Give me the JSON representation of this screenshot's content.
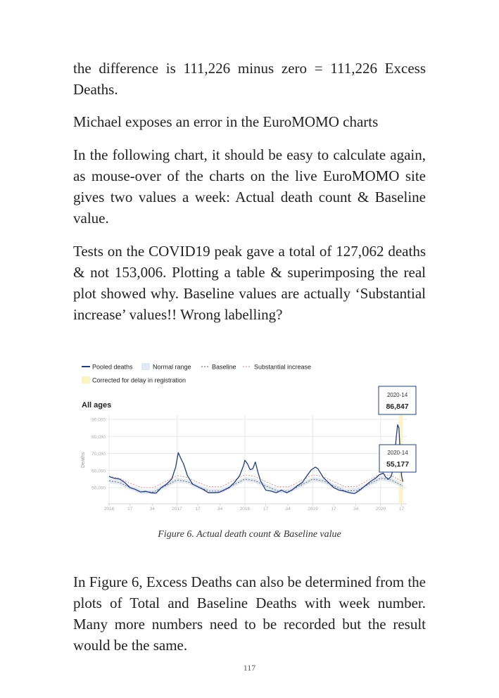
{
  "paragraphs": [
    "the difference is 111,226 minus zero = 111,226 Excess Deaths.",
    "Michael exposes an error in the EuroMOMO charts",
    "In the following chart, it should be easy to calculate again, as mouse-over of the charts on the live EuroMOMO site gives two values a week: Actual death count & Baseline value.",
    "Tests on the COVID19 peak gave a total of 127,062 deaths & not 153,006. Plotting a table & superimposing the real plot showed why. Baseline values are actually ‘Substantial increase’ values!! Wrong labelling?",
    "In Figure 6, Excess Deaths can also be determined from the plots of Total and Baseline Deaths with week number. Many more numbers need to be recorded but the result would be the same."
  ],
  "figure_caption": "Figure 6. Actual death count & Baseline value",
  "page_number": "117",
  "chart_data": {
    "type": "line",
    "title": "All ages",
    "ylabel": "Deaths",
    "xlabel": "",
    "ylim": [
      45000,
      91000
    ],
    "grid": true,
    "legend_placement": "top-left",
    "legend": [
      "Pooled deaths",
      "Normal range",
      "Baseline",
      "Substantial increase",
      "Corrected for delay in registration"
    ],
    "y_ticks": [
      "90,000",
      "80,000",
      "70,000",
      "60,000",
      "50,000"
    ],
    "y_tick_values": [
      90000,
      80000,
      70000,
      60000,
      50000
    ],
    "x_ticks": [
      {
        "label": "2016",
        "year": 2016,
        "week": 1
      },
      {
        "label": "17",
        "year": 2016,
        "week": 17
      },
      {
        "label": "34",
        "year": 2016,
        "week": 34
      },
      {
        "label": "2017",
        "year": 2017,
        "week": 1
      },
      {
        "label": "17",
        "year": 2017,
        "week": 17
      },
      {
        "label": "34",
        "year": 2017,
        "week": 34
      },
      {
        "label": "2018",
        "year": 2018,
        "week": 1
      },
      {
        "label": "17",
        "year": 2018,
        "week": 17
      },
      {
        "label": "34",
        "year": 2018,
        "week": 34
      },
      {
        "label": "2019",
        "year": 2019,
        "week": 1
      },
      {
        "label": "17",
        "year": 2019,
        "week": 17
      },
      {
        "label": "34",
        "year": 2019,
        "week": 34
      },
      {
        "label": "2020",
        "year": 2020,
        "week": 1
      },
      {
        "label": "17",
        "year": 2020,
        "week": 17
      }
    ],
    "colors": {
      "pooled": "#1f3d8a",
      "normal_range": "#e3e9f0",
      "baseline": "#555555",
      "substantial": "#e07a7a",
      "corrected": "#fbf3c0"
    },
    "corrected_weeks": {
      "from": "2020-15",
      "to": "2020-18"
    },
    "series": [
      {
        "name": "Pooled deaths",
        "points": [
          [
            "2016-01",
            56500
          ],
          [
            "2016-05",
            55500
          ],
          [
            "2016-09",
            55000
          ],
          [
            "2016-13",
            53000
          ],
          [
            "2016-17",
            50000
          ],
          [
            "2016-21",
            49000
          ],
          [
            "2016-25",
            47500
          ],
          [
            "2016-29",
            47800
          ],
          [
            "2016-33",
            47000
          ],
          [
            "2016-37",
            46800
          ],
          [
            "2016-41",
            50000
          ],
          [
            "2016-45",
            52000
          ],
          [
            "2016-49",
            55000
          ],
          [
            "2016-52",
            62000
          ],
          [
            "2017-02",
            70500
          ],
          [
            "2017-04",
            67000
          ],
          [
            "2017-06",
            64000
          ],
          [
            "2017-09",
            57000
          ],
          [
            "2017-13",
            52000
          ],
          [
            "2017-17",
            50500
          ],
          [
            "2017-21",
            49000
          ],
          [
            "2017-25",
            47000
          ],
          [
            "2017-29",
            47000
          ],
          [
            "2017-33",
            47200
          ],
          [
            "2017-37",
            48500
          ],
          [
            "2017-41",
            50000
          ],
          [
            "2017-45",
            53000
          ],
          [
            "2017-49",
            57000
          ],
          [
            "2017-52",
            63000
          ],
          [
            "2018-01",
            66000
          ],
          [
            "2018-03",
            64000
          ],
          [
            "2018-05",
            60500
          ],
          [
            "2018-07",
            61000
          ],
          [
            "2018-09",
            65000
          ],
          [
            "2018-11",
            59000
          ],
          [
            "2018-13",
            54000
          ],
          [
            "2018-17",
            48500
          ],
          [
            "2018-21",
            48000
          ],
          [
            "2018-25",
            47000
          ],
          [
            "2018-29",
            48500
          ],
          [
            "2018-33",
            47000
          ],
          [
            "2018-37",
            48500
          ],
          [
            "2018-41",
            51000
          ],
          [
            "2018-45",
            53000
          ],
          [
            "2018-49",
            57500
          ],
          [
            "2018-52",
            60500
          ],
          [
            "2019-03",
            62000
          ],
          [
            "2019-05",
            61000
          ],
          [
            "2019-09",
            56000
          ],
          [
            "2019-13",
            53000
          ],
          [
            "2019-17",
            50000
          ],
          [
            "2019-21",
            48500
          ],
          [
            "2019-25",
            48000
          ],
          [
            "2019-29",
            47000
          ],
          [
            "2019-33",
            46500
          ],
          [
            "2019-37",
            48500
          ],
          [
            "2019-41",
            51000
          ],
          [
            "2019-45",
            53500
          ],
          [
            "2019-49",
            55500
          ],
          [
            "2019-52",
            57500
          ],
          [
            "2020-03",
            58500
          ],
          [
            "2020-05",
            56000
          ],
          [
            "2020-07",
            55000
          ],
          [
            "2020-09",
            56500
          ],
          [
            "2020-11",
            62000
          ],
          [
            "2020-13",
            80000
          ],
          [
            "2020-14",
            86847
          ],
          [
            "2020-15",
            85000
          ],
          [
            "2020-16",
            70000
          ],
          [
            "2020-17",
            57000
          ],
          [
            "2020-18",
            53500
          ]
        ]
      },
      {
        "name": "Baseline",
        "points": [
          [
            "2016-01",
            54000
          ],
          [
            "2016-09",
            53000
          ],
          [
            "2016-17",
            50000
          ],
          [
            "2016-26",
            47500
          ],
          [
            "2016-35",
            47500
          ],
          [
            "2016-44",
            51000
          ],
          [
            "2017-01",
            54500
          ],
          [
            "2017-09",
            53500
          ],
          [
            "2017-17",
            50500
          ],
          [
            "2017-26",
            48000
          ],
          [
            "2017-35",
            48000
          ],
          [
            "2017-44",
            51500
          ],
          [
            "2018-01",
            55000
          ],
          [
            "2018-09",
            54000
          ],
          [
            "2018-17",
            51000
          ],
          [
            "2018-26",
            48000
          ],
          [
            "2018-35",
            48000
          ],
          [
            "2018-44",
            51500
          ],
          [
            "2019-01",
            55000
          ],
          [
            "2019-09",
            54000
          ],
          [
            "2019-17",
            51000
          ],
          [
            "2019-26",
            48000
          ],
          [
            "2019-35",
            48300
          ],
          [
            "2019-44",
            52000
          ],
          [
            "2020-01",
            55500
          ],
          [
            "2020-09",
            54500
          ],
          [
            "2020-18",
            51000
          ]
        ]
      },
      {
        "name": "Substantial increase",
        "points": [
          [
            "2016-01",
            56500
          ],
          [
            "2016-09",
            55500
          ],
          [
            "2016-17",
            52500
          ],
          [
            "2016-26",
            50000
          ],
          [
            "2016-35",
            50000
          ],
          [
            "2016-44",
            53500
          ],
          [
            "2017-01",
            57000
          ],
          [
            "2017-09",
            56000
          ],
          [
            "2017-17",
            53000
          ],
          [
            "2017-26",
            50500
          ],
          [
            "2017-35",
            50500
          ],
          [
            "2017-44",
            54000
          ],
          [
            "2018-01",
            57500
          ],
          [
            "2018-09",
            56500
          ],
          [
            "2018-17",
            53500
          ],
          [
            "2018-26",
            50500
          ],
          [
            "2018-35",
            50500
          ],
          [
            "2018-44",
            54000
          ],
          [
            "2019-01",
            57500
          ],
          [
            "2019-09",
            56500
          ],
          [
            "2019-17",
            53500
          ],
          [
            "2019-26",
            50500
          ],
          [
            "2019-35",
            50800
          ],
          [
            "2019-44",
            54500
          ],
          [
            "2020-01",
            58000
          ],
          [
            "2020-09",
            57000
          ],
          [
            "2020-18",
            53500
          ]
        ]
      }
    ],
    "tooltips": [
      {
        "week": "2020-14",
        "value": "86,847"
      },
      {
        "week": "2020-14",
        "value": "55,177"
      }
    ]
  }
}
